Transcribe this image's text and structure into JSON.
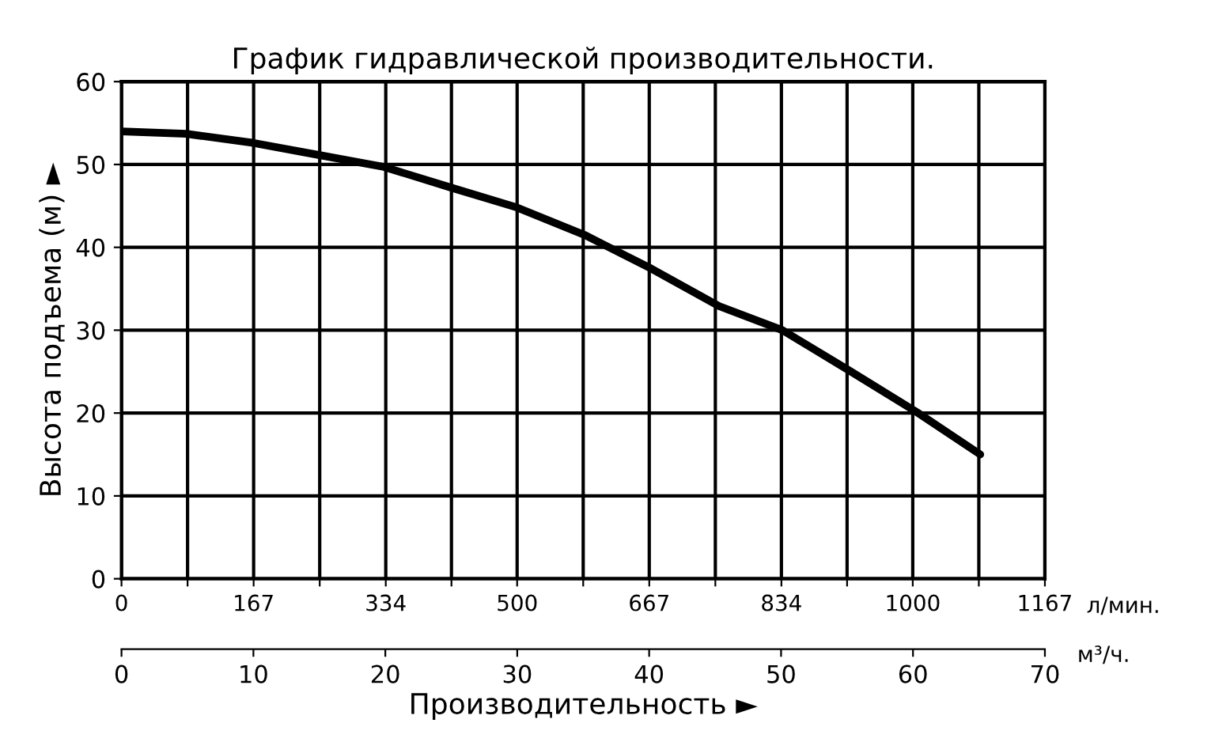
{
  "chart_data": {
    "type": "line",
    "title": "График гидравлической производительности.",
    "xlabel": "Производительность ►",
    "ylabel": "Высота подъема (м) ►",
    "x2label": "л/мин.",
    "annotations": [
      "м³/ч."
    ],
    "series": [
      {
        "color": "#000000",
        "x": [
          0,
          4.9,
          10,
          15.1,
          19.9,
          25,
          30,
          35.1,
          40.2,
          45.3,
          50.1,
          55.2,
          60.3,
          65.1
        ],
        "values": [
          54,
          53.7,
          52.6,
          51.1,
          49.7,
          47.2,
          44.8,
          41.5,
          37.4,
          32.9,
          30,
          25.1,
          20.1,
          15
        ]
      }
    ],
    "xlim": [
      0,
      70
    ],
    "xticks": [
      0,
      10,
      20,
      30,
      40,
      50,
      60,
      70
    ],
    "x2lim": [
      0,
      1167
    ],
    "x2ticks": [
      0,
      {
        "value": 83.5,
        "label": null
      },
      167,
      {
        "value": 250.5,
        "label": null
      },
      334,
      {
        "value": 417,
        "label": null
      },
      500,
      {
        "value": 583.5,
        "label": null
      },
      667,
      {
        "value": 750.5,
        "label": null
      },
      834,
      {
        "value": 917,
        "label": null
      },
      1000,
      {
        "value": 1083.5,
        "label": null
      },
      1167
    ],
    "ylim": [
      0,
      60
    ],
    "yticks": [
      0,
      10,
      20,
      30,
      40,
      50,
      60
    ],
    "grid": true,
    "line_style": "solid",
    "marker": "none"
  }
}
